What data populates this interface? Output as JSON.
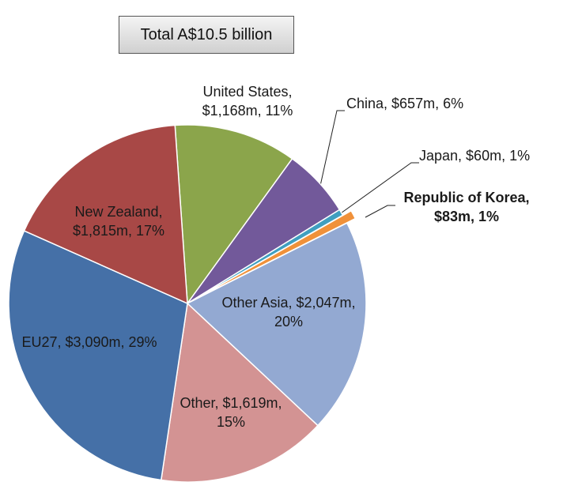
{
  "chart_data": {
    "type": "pie",
    "title": "Total A$10.5 billion",
    "values": [
      1168,
      657,
      60,
      83,
      2047,
      1619,
      3090,
      1815
    ],
    "value_labels": [
      "United States, $1,168m, 11%",
      "China, $657m, 6%",
      "Japan, $60m, 1%",
      "Republic of Korea, $83m, 1%",
      "Other Asia, $2,047m, 20%",
      "Other, $1,619m, 15%",
      "EU27, $3,090m, 29%",
      "New Zealand, $1,815m, 17%"
    ],
    "colors": [
      "#8ba54b",
      "#72599a",
      "#3f9fc0",
      "#f0913a",
      "#93a9d2",
      "#d39393",
      "#4570a7",
      "#a84846"
    ]
  }
}
